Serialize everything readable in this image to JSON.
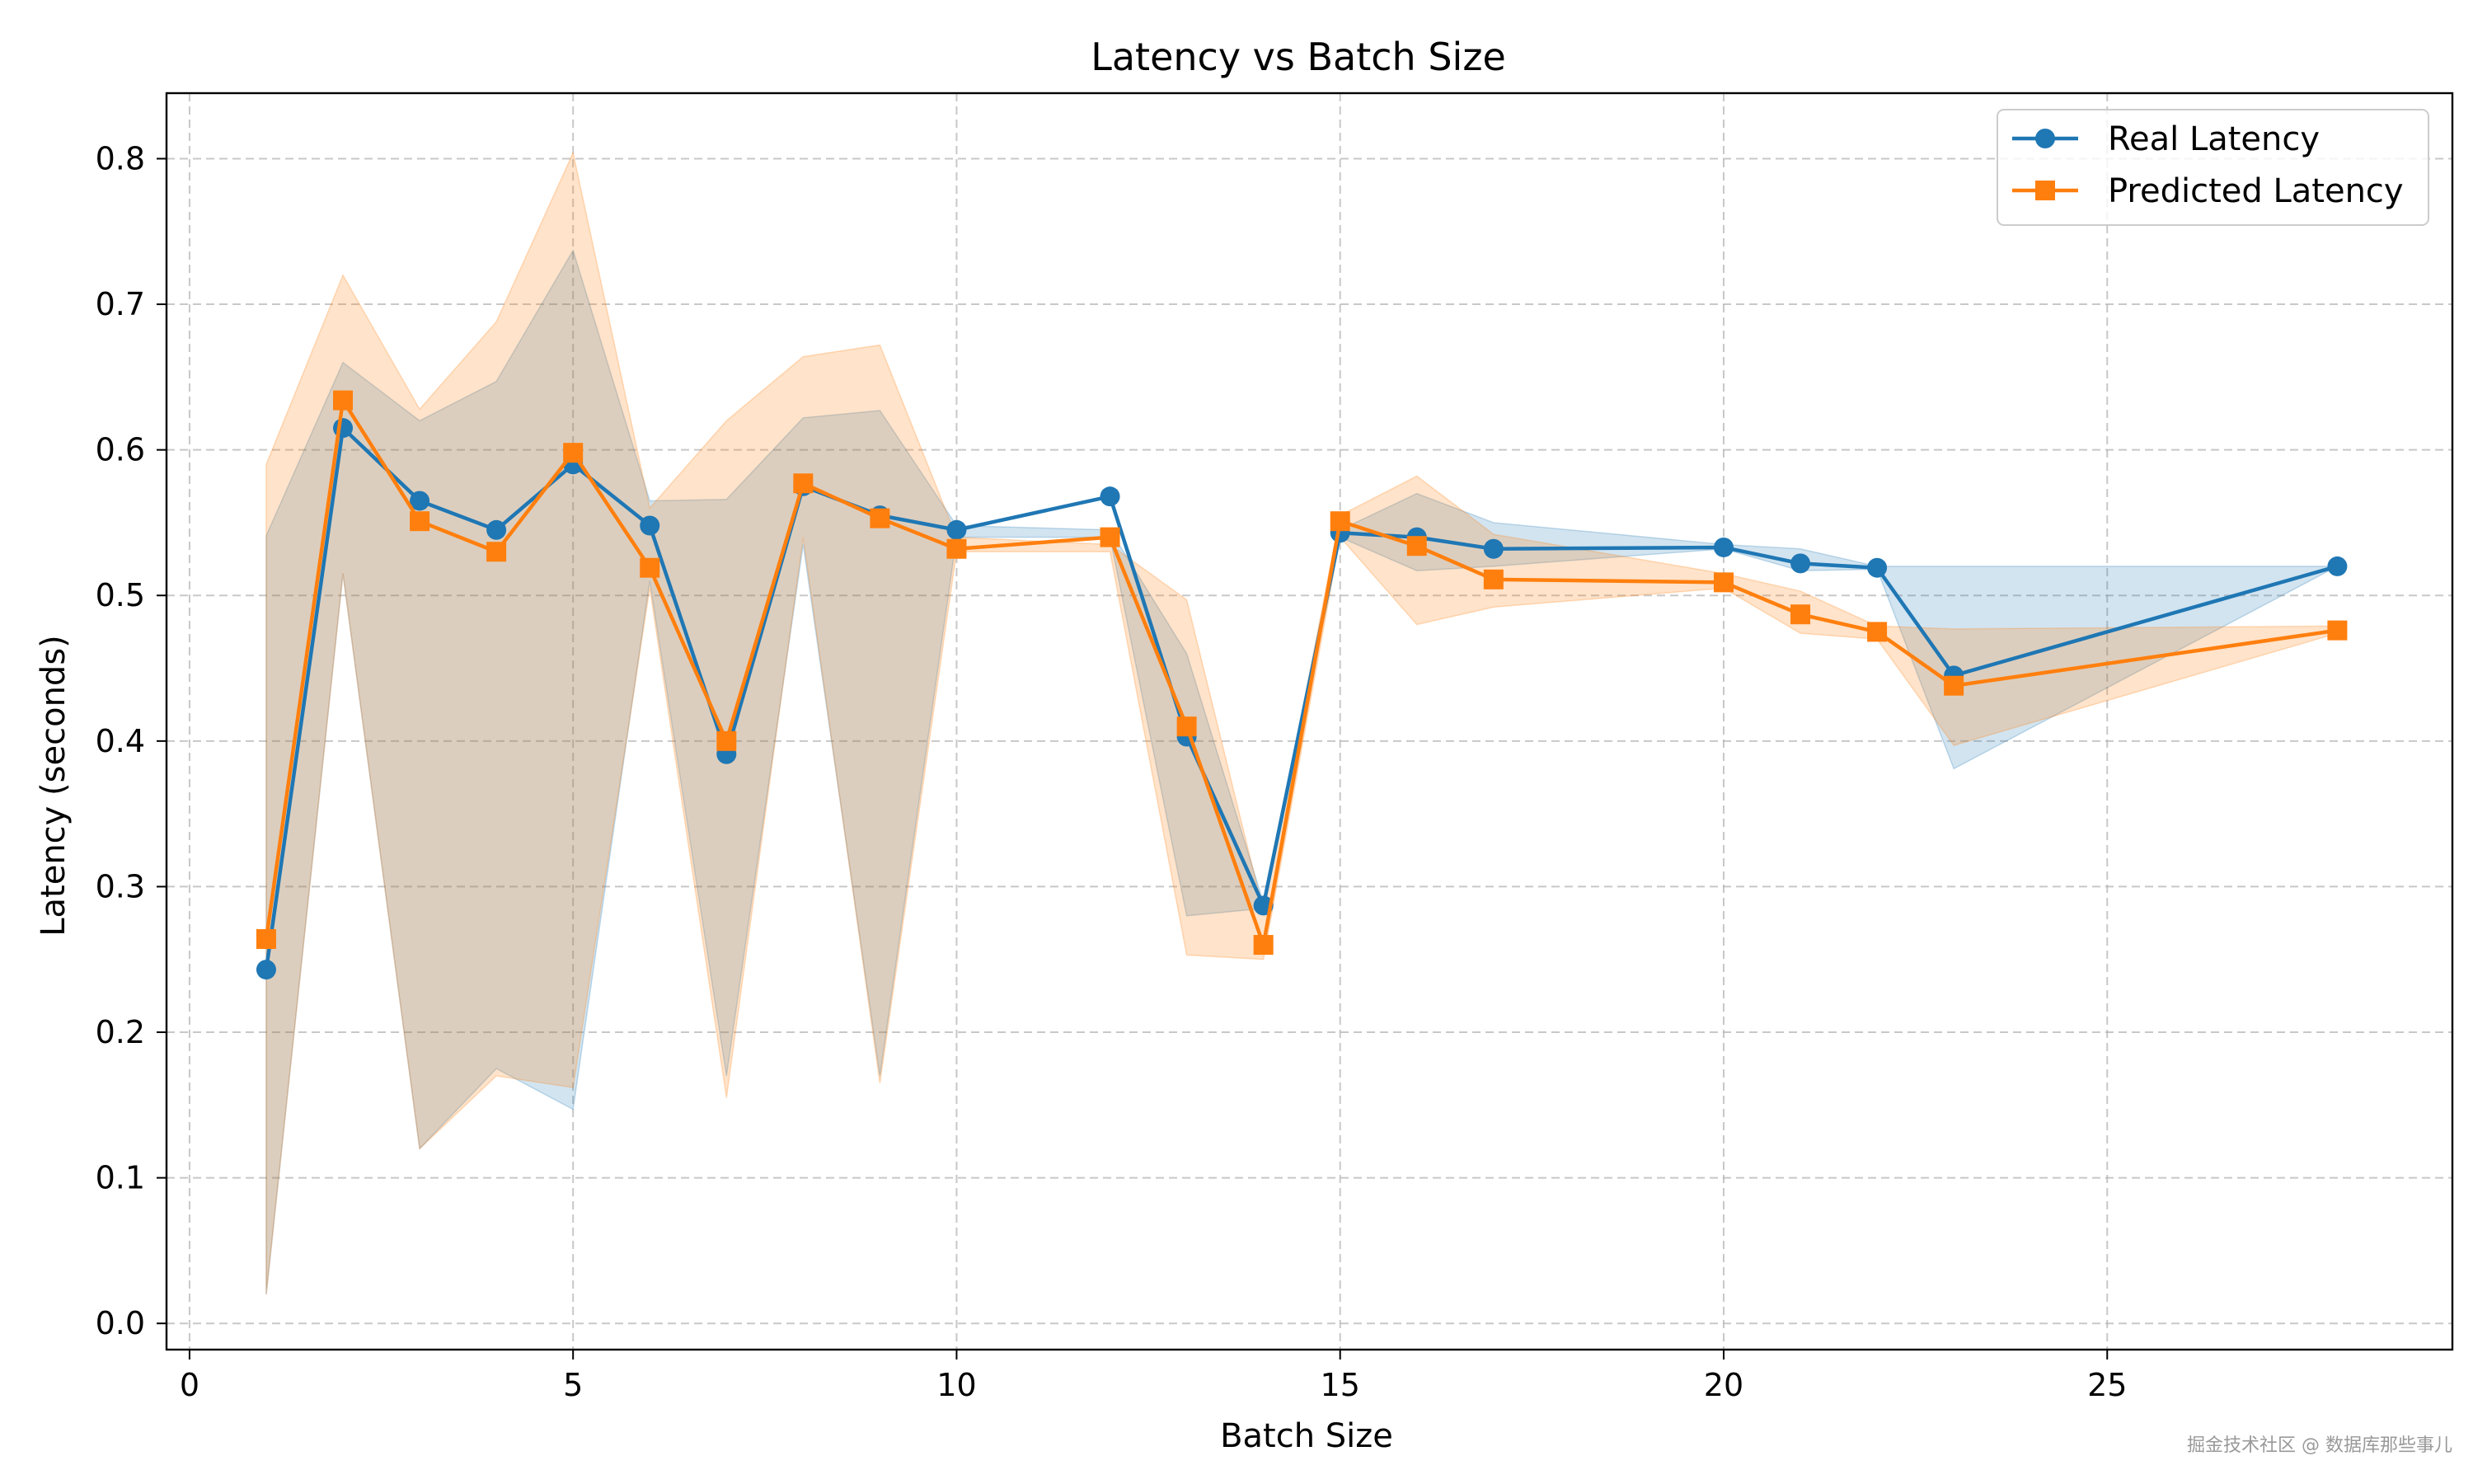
{
  "chart_data": {
    "type": "line",
    "title": "Latency vs Batch Size",
    "xlabel": "Batch Size",
    "ylabel": "Latency (seconds)",
    "xlim": [
      -0.3,
      29.5
    ],
    "ylim": [
      -0.018,
      0.845
    ],
    "xticks": [
      0,
      5,
      10,
      15,
      20,
      25
    ],
    "yticks": [
      0.0,
      0.1,
      0.2,
      0.3,
      0.4,
      0.5,
      0.6,
      0.7,
      0.8
    ],
    "ytick_labels": [
      "0.0",
      "0.1",
      "0.2",
      "0.3",
      "0.4",
      "0.5",
      "0.6",
      "0.7",
      "0.8"
    ],
    "grid": true,
    "legend_position": "upper right",
    "x": [
      1,
      2,
      3,
      4,
      5,
      6,
      7,
      8,
      9,
      10,
      12,
      13,
      14,
      15,
      16,
      17,
      20,
      21,
      22,
      23,
      28
    ],
    "series": [
      {
        "name": "Real Latency",
        "color": "#1f77b4",
        "marker": "circle",
        "values": [
          0.243,
          0.615,
          0.565,
          0.545,
          0.59,
          0.548,
          0.391,
          0.575,
          0.555,
          0.545,
          0.568,
          0.403,
          0.287,
          0.543,
          0.54,
          0.532,
          0.533,
          0.522,
          0.519,
          0.445,
          0.52
        ],
        "band_lower": [
          0.02,
          0.515,
          0.12,
          0.175,
          0.147,
          0.51,
          0.17,
          0.535,
          0.17,
          0.54,
          0.54,
          0.28,
          0.285,
          0.54,
          0.517,
          0.52,
          0.532,
          0.517,
          0.518,
          0.381,
          0.52
        ],
        "band_upper": [
          0.541,
          0.66,
          0.62,
          0.647,
          0.737,
          0.565,
          0.566,
          0.622,
          0.627,
          0.548,
          0.545,
          0.46,
          0.289,
          0.545,
          0.57,
          0.55,
          0.535,
          0.532,
          0.52,
          0.52,
          0.52
        ]
      },
      {
        "name": "Predicted Latency",
        "color": "#ff7f0e",
        "marker": "square",
        "values": [
          0.264,
          0.634,
          0.551,
          0.53,
          0.598,
          0.519,
          0.4,
          0.577,
          0.553,
          0.532,
          0.54,
          0.41,
          0.26,
          0.551,
          0.534,
          0.511,
          0.509,
          0.487,
          0.475,
          0.438,
          0.476
        ],
        "band_lower": [
          0.02,
          0.515,
          0.12,
          0.17,
          0.162,
          0.505,
          0.155,
          0.54,
          0.165,
          0.53,
          0.53,
          0.253,
          0.25,
          0.54,
          0.48,
          0.492,
          0.505,
          0.474,
          0.47,
          0.397,
          0.474
        ],
        "band_upper": [
          0.59,
          0.72,
          0.628,
          0.688,
          0.804,
          0.56,
          0.62,
          0.664,
          0.672,
          0.54,
          0.535,
          0.497,
          0.283,
          0.555,
          0.582,
          0.542,
          0.515,
          0.503,
          0.479,
          0.477,
          0.479
        ]
      }
    ]
  },
  "watermark": "掘金技术社区 @ 数据库那些事儿"
}
